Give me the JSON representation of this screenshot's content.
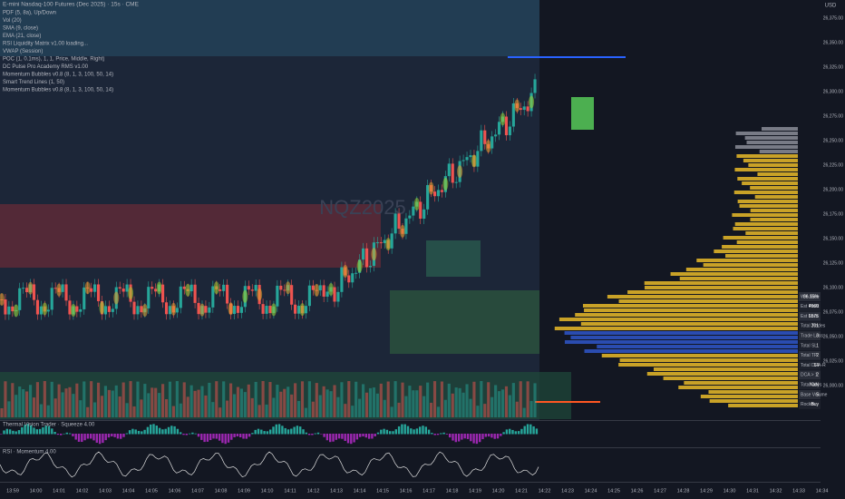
{
  "header": {
    "title": "E-mini Nasdaq-100 Futures (Dec 2025) · 15s · CME",
    "indicators": [
      "PDF (5, 8a), Up/Down",
      "Vol (20)",
      "SMA (9, close)",
      "EMA (21, close)",
      "RSI Liquidity Matrix v1.00 loading...",
      "VWAP (Session)",
      "POC (1, 0.1ms), 1, 1, Price, Middle, Right)",
      "DC Pulse Pro Academy RMS v1.00",
      "Momentum Bubbles v0.8 (8, 1, 3, 100, 50, 14)",
      "Smart Trend Lines (1, 50)",
      "Momentum Bubbles v0.8 (8, 1, 3, 100, 50, 14)"
    ],
    "watermark": "NQZ2025",
    "corner": "USD"
  },
  "price_axis": [
    "26,375.00",
    "26,350.00",
    "26,325.00",
    "26,300.00",
    "26,275.00",
    "26,250.00",
    "26,225.00",
    "26,200.00",
    "26,175.00",
    "26,150.00",
    "26,125.00",
    "26,100.00",
    "26,075.00",
    "26,050.00",
    "26,025.00",
    "26,000.00"
  ],
  "time_axis": [
    "13:59",
    "14:00",
    "14:01",
    "14:02",
    "14:03",
    "14:04",
    "14:05",
    "14:06",
    "14:07",
    "14:08",
    "14:09",
    "14:10",
    "14:11",
    "14:12",
    "14:13",
    "14:14",
    "14:15",
    "14:16",
    "14:17",
    "14:18",
    "14:19",
    "14:20",
    "14:21",
    "14:22",
    "14:23",
    "14:24",
    "14:25",
    "14:26",
    "14:27",
    "14:28",
    "14:29",
    "14:30",
    "14:31",
    "14:32",
    "14:33",
    "14:34"
  ],
  "panes": [
    "Thermal Vision Trader · Squeeze 4.00",
    "RSI · Momentum 4.00"
  ],
  "stats_table": {
    "rows": [
      [
        "Win Rate",
        "96.15%"
      ],
      [
        "Est Profit",
        "4960"
      ],
      [
        "Est Loss",
        "6575"
      ],
      [
        "Total Trades",
        "201"
      ],
      [
        "Trade Loss",
        "3"
      ],
      [
        "Total SL",
        "1"
      ],
      [
        "Total TP",
        "2"
      ],
      [
        "Total DCA-R",
        "14"
      ],
      [
        "DCA > 1",
        "2"
      ],
      [
        "Total Days",
        "NaN"
      ],
      [
        "Base Volume",
        "5"
      ],
      [
        "Rocket",
        "Buy"
      ]
    ]
  }
}
